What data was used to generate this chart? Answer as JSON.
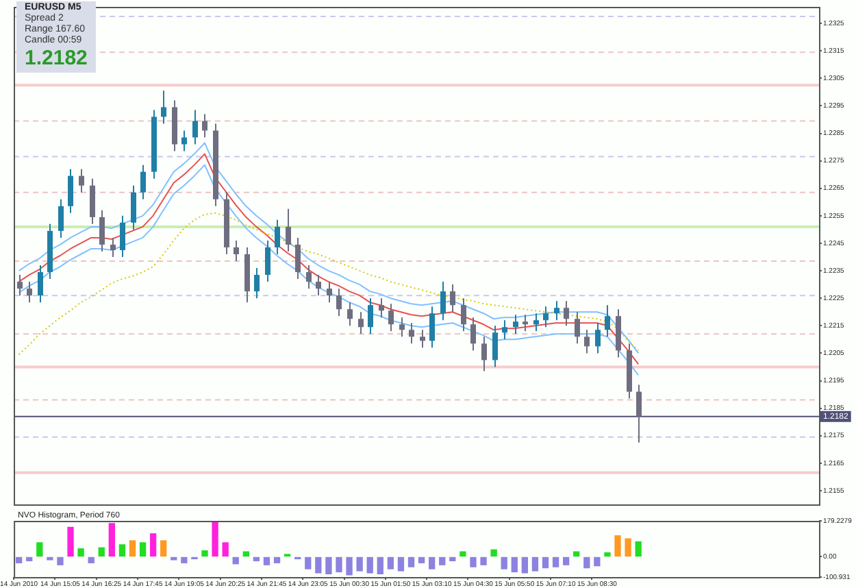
{
  "chart_data": [
    {
      "type": "candlestick",
      "annotations": [
        "EURUSD   M5",
        "Spread  2",
        "Range  167.60",
        "Candle  00:59",
        "1.2182"
      ],
      "categories": [
        null,
        null,
        null,
        null,
        null,
        null,
        null,
        null,
        null,
        null,
        null,
        null,
        null,
        null,
        null,
        null,
        null,
        null,
        null,
        null,
        null,
        null,
        null,
        null,
        null,
        null,
        null,
        null,
        null,
        null,
        null,
        null,
        null,
        null,
        null,
        null,
        null,
        null,
        null,
        null,
        null,
        null,
        null,
        null,
        null,
        null,
        null,
        null,
        null,
        null,
        null,
        null,
        null,
        null,
        null,
        null,
        null,
        null,
        null,
        null,
        null,
        null,
        null,
        null,
        null,
        null,
        null,
        null,
        null,
        null,
        null,
        null,
        null,
        null,
        null,
        null,
        null,
        null
      ],
      "ohlc": [
        [
          1.2231,
          1.22335,
          1.2226,
          1.22285
        ],
        [
          1.22285,
          1.2231,
          1.22235,
          1.2226
        ],
        [
          1.2226,
          1.2237,
          1.22235,
          1.22345
        ],
        [
          1.22345,
          1.2252,
          1.2232,
          1.22495
        ],
        [
          1.22495,
          1.2261,
          1.2247,
          1.22585
        ],
        [
          1.22585,
          1.2272,
          1.2256,
          1.22695
        ],
        [
          1.22695,
          1.2272,
          1.22635,
          1.2266
        ],
        [
          1.2266,
          1.22685,
          1.2252,
          1.22545
        ],
        [
          1.22545,
          1.2257,
          1.2242,
          1.22445
        ],
        [
          1.22445,
          1.2247,
          1.224,
          1.22425
        ],
        [
          1.22425,
          1.2255,
          1.224,
          1.22525
        ],
        [
          1.22525,
          1.2266,
          1.225,
          1.22635
        ],
        [
          1.22635,
          1.22735,
          1.2261,
          1.2271
        ],
        [
          1.2271,
          1.22935,
          1.22685,
          1.2291
        ],
        [
          1.2291,
          1.23005,
          1.22885,
          1.22945
        ],
        [
          1.22945,
          1.2297,
          1.22785,
          1.2281
        ],
        [
          1.2281,
          1.2286,
          1.22785,
          1.22835
        ],
        [
          1.22835,
          1.22935,
          1.2281,
          1.22895
        ],
        [
          1.22895,
          1.2292,
          1.22835,
          1.2286
        ],
        [
          1.2286,
          1.22885,
          1.22585,
          1.2261
        ],
        [
          1.2261,
          1.22635,
          1.2241,
          1.22435
        ],
        [
          1.22435,
          1.2246,
          1.22385,
          1.2241
        ],
        [
          1.2241,
          1.22435,
          1.22235,
          1.22275
        ],
        [
          1.22275,
          1.2236,
          1.2225,
          1.22335
        ],
        [
          1.22335,
          1.2246,
          1.2231,
          1.22435
        ],
        [
          1.22435,
          1.22535,
          1.2241,
          1.2251
        ],
        [
          1.2251,
          1.22575,
          1.2242,
          1.22445
        ],
        [
          1.22445,
          1.2247,
          1.2232,
          1.22345
        ],
        [
          1.22345,
          1.2237,
          1.22285,
          1.2231
        ],
        [
          1.2231,
          1.22335,
          1.2226,
          1.22285
        ],
        [
          1.22285,
          1.2231,
          1.22235,
          1.2226
        ],
        [
          1.2226,
          1.22285,
          1.22185,
          1.2221
        ],
        [
          1.2221,
          1.22235,
          1.2215,
          1.22175
        ],
        [
          1.22175,
          1.222,
          1.2212,
          1.22145
        ],
        [
          1.22145,
          1.2225,
          1.2212,
          1.22225
        ],
        [
          1.22225,
          1.2225,
          1.2218,
          1.22205
        ],
        [
          1.22205,
          1.2223,
          1.2213,
          1.22155
        ],
        [
          1.22155,
          1.2218,
          1.2211,
          1.22135
        ],
        [
          1.22135,
          1.2216,
          1.22085,
          1.2211
        ],
        [
          1.2211,
          1.22135,
          1.2207,
          1.22095
        ],
        [
          1.22095,
          1.2222,
          1.2207,
          1.22195
        ],
        [
          1.22195,
          1.2231,
          1.2217,
          1.22275
        ],
        [
          1.22275,
          1.223,
          1.222,
          1.22225
        ],
        [
          1.22225,
          1.2225,
          1.2213,
          1.22155
        ],
        [
          1.22155,
          1.2218,
          1.2206,
          1.22085
        ],
        [
          1.22085,
          1.2211,
          1.21985,
          1.22025
        ],
        [
          1.22025,
          1.2215,
          1.22,
          1.22125
        ],
        [
          1.22125,
          1.2217,
          1.221,
          1.22145
        ],
        [
          1.22145,
          1.2219,
          1.2212,
          1.22165
        ],
        [
          1.22165,
          1.2219,
          1.2213,
          1.22155
        ],
        [
          1.22155,
          1.22195,
          1.2213,
          1.2217
        ],
        [
          1.2217,
          1.2222,
          1.22145,
          1.22195
        ],
        [
          1.22195,
          1.2224,
          1.2217,
          1.22215
        ],
        [
          1.22215,
          1.2224,
          1.2215,
          1.22175
        ],
        [
          1.22175,
          1.222,
          1.22085,
          1.2211
        ],
        [
          1.2211,
          1.22135,
          1.2205,
          1.22075
        ],
        [
          1.22075,
          1.2216,
          1.2205,
          1.22135
        ],
        [
          1.22135,
          1.22225,
          1.2211,
          1.22185
        ],
        [
          1.22185,
          1.2221,
          1.22035,
          1.2206
        ],
        [
          1.2206,
          1.22085,
          1.21885,
          1.2191
        ],
        [
          1.2191,
          1.21935,
          1.21725,
          1.2182
        ],
        null,
        null,
        null,
        null,
        null,
        null,
        null,
        null,
        null,
        null,
        null,
        null,
        null,
        null,
        null,
        null,
        null
      ],
      "colors": [
        "#6e6e80",
        "#6e6e80",
        "#1f7fa6",
        "#1f7fa6",
        "#1f7fa6",
        "#1f7fa6",
        "#6e6e80",
        "#6e6e80",
        "#6e6e80",
        "#6e6e80",
        "#1f7fa6",
        "#1f7fa6",
        "#1f7fa6",
        "#1f7fa6",
        "#1f7fa6",
        "#6e6e80",
        "#1f7fa6",
        "#1f7fa6",
        "#6e6e80",
        "#6e6e80",
        "#6e6e80",
        "#6e6e80",
        "#6e6e80",
        "#1f7fa6",
        "#1f7fa6",
        "#1f7fa6",
        "#6e6e80",
        "#6e6e80",
        "#6e6e80",
        "#6e6e80",
        "#6e6e80",
        "#6e6e80",
        "#6e6e80",
        "#6e6e80",
        "#1f7fa6",
        "#6e6e80",
        "#6e6e80",
        "#6e6e80",
        "#6e6e80",
        "#6e6e80",
        "#1f7fa6",
        "#1f7fa6",
        "#6e6e80",
        "#6e6e80",
        "#6e6e80",
        "#6e6e80",
        "#1f7fa6",
        "#1f7fa6",
        "#1f7fa6",
        "#6e6e80",
        "#1f7fa6",
        "#1f7fa6",
        "#1f7fa6",
        "#6e6e80",
        "#6e6e80",
        "#6e6e80",
        "#1f7fa6",
        "#1f7fa6",
        "#6e6e80",
        "#6e6e80",
        "#6e6e80",
        "#6e6e80",
        "#6e6e80",
        "#6e6e80",
        "#6e6e80",
        "#6e6e80",
        "#6e6e80",
        "#6e6e80",
        "#6e6e80",
        "#6e6e80",
        "#6e6e80",
        "#6e6e80",
        "#6e6e80",
        "#6e6e80",
        "#6e6e80",
        "#6e6e80",
        "#6e6e80",
        "#6e6e80"
      ],
      "series": [
        {
          "type": "line",
          "color": "#d6c800",
          "line_style": "dotted",
          "values": [
            1.22045,
            1.2208,
            1.2212,
            1.2215,
            1.2218,
            1.22205,
            1.22235,
            1.22255,
            1.2228,
            1.22305,
            1.2232,
            1.2233,
            1.22345,
            1.22365,
            1.2241,
            1.2246,
            1.22505,
            1.22535,
            1.22555,
            1.2256,
            1.2255,
            1.22535,
            1.22515,
            1.225,
            1.22485,
            1.2247,
            1.22455,
            1.22435,
            1.2242,
            1.2241,
            1.22395,
            1.2238,
            1.22365,
            1.2235,
            1.22335,
            1.22325,
            1.2231,
            1.223,
            1.2229,
            1.2228,
            1.2227,
            1.2226,
            1.22255,
            1.22245,
            1.2224,
            1.2223,
            1.22225,
            1.2222,
            1.22215,
            1.2221,
            1.22205,
            1.222,
            1.22195,
            1.2219,
            1.22185,
            1.2218,
            1.22175,
            1.22165,
            1.2214,
            1.22095,
            1.2206,
            null,
            null,
            null,
            null,
            null,
            null,
            null,
            null,
            null,
            null,
            null,
            null,
            null,
            null,
            null,
            null,
            null
          ]
        },
        {
          "type": "line",
          "color": "#e85050",
          "values": [
            1.2231,
            1.22335,
            1.22355,
            1.22385,
            1.22405,
            1.2243,
            1.2245,
            1.2247,
            1.2247,
            1.22465,
            1.2248,
            1.22495,
            1.2251,
            1.2255,
            1.2261,
            1.2267,
            1.227,
            1.22735,
            1.22775,
            1.2269,
            1.2264,
            1.2259,
            1.22545,
            1.2251,
            1.2248,
            1.22445,
            1.22415,
            1.2239,
            1.22355,
            1.2233,
            1.2231,
            1.22295,
            1.22275,
            1.2226,
            1.22235,
            1.22225,
            1.2221,
            1.222,
            1.2219,
            1.22185,
            1.2219,
            1.22195,
            1.222,
            1.22185,
            1.2217,
            1.22155,
            1.22135,
            1.2214,
            1.2214,
            1.22145,
            1.2215,
            1.22155,
            1.2216,
            1.2216,
            1.2216,
            1.2216,
            1.2216,
            1.2215,
            1.22105,
            1.2206,
            1.2201,
            null,
            null,
            null,
            null,
            null,
            null,
            null,
            null,
            null,
            null,
            null,
            null,
            null,
            null,
            null,
            null,
            null
          ]
        },
        {
          "type": "line",
          "color": "#80c0ff",
          "values": [
            1.2235,
            1.22375,
            1.22395,
            1.22425,
            1.22445,
            1.2247,
            1.2249,
            1.2251,
            1.2251,
            1.22505,
            1.2252,
            1.22535,
            1.2255,
            1.2259,
            1.2265,
            1.2271,
            1.2274,
            1.22775,
            1.22815,
            1.2273,
            1.2268,
            1.2263,
            1.22585,
            1.2255,
            1.2252,
            1.22485,
            1.22455,
            1.2243,
            1.22395,
            1.2237,
            1.2235,
            1.22335,
            1.22315,
            1.223,
            1.22275,
            1.22265,
            1.2225,
            1.2224,
            1.2223,
            1.22225,
            1.2223,
            1.22235,
            1.2224,
            1.22225,
            1.2221,
            1.22195,
            1.22175,
            1.2218,
            1.2218,
            1.22185,
            1.2219,
            1.22195,
            1.222,
            1.222,
            1.222,
            1.222,
            1.222,
            1.2219,
            1.22145,
            1.221,
            1.2205,
            null,
            null,
            null,
            null,
            null,
            null,
            null,
            null,
            null,
            null,
            null,
            null,
            null,
            null,
            null,
            null,
            null
          ]
        },
        {
          "type": "line",
          "color": "#80c0ff",
          "values": [
            1.2227,
            1.22295,
            1.22315,
            1.22345,
            1.22365,
            1.2239,
            1.2241,
            1.2243,
            1.2243,
            1.22425,
            1.2244,
            1.22455,
            1.2247,
            1.2251,
            1.2257,
            1.2263,
            1.2266,
            1.22695,
            1.22735,
            1.2265,
            1.226,
            1.2255,
            1.22505,
            1.2247,
            1.2244,
            1.22405,
            1.22375,
            1.2235,
            1.22315,
            1.2229,
            1.2227,
            1.22255,
            1.22235,
            1.2222,
            1.22195,
            1.22185,
            1.2217,
            1.2216,
            1.2215,
            1.22145,
            1.2215,
            1.22155,
            1.2216,
            1.22145,
            1.2213,
            1.22115,
            1.22095,
            1.221,
            1.221,
            1.22105,
            1.2211,
            1.22115,
            1.2212,
            1.2212,
            1.2212,
            1.2212,
            1.2212,
            1.2211,
            1.22065,
            1.2202,
            1.2197,
            null,
            null,
            null,
            null,
            null,
            null,
            null,
            null,
            null,
            null,
            null,
            null,
            null,
            null,
            null,
            null,
            null
          ]
        }
      ],
      "ylim": [
        1.215,
        1.2331
      ],
      "yticks": [
        1.2155,
        1.2165,
        1.2175,
        1.2185,
        1.2195,
        1.2205,
        1.2215,
        1.2225,
        1.2235,
        1.2245,
        1.2255,
        1.2265,
        1.2275,
        1.2285,
        1.2295,
        1.2305,
        1.2315,
        1.2325
      ],
      "tick_labels": "y",
      "ref_lines": [
        {
          "axis": "y",
          "value": 1.23275,
          "color": "#c8c8f0",
          "line_style": "dashed"
        },
        {
          "axis": "y",
          "value": 1.23145,
          "color": "#ecc4c4",
          "line_style": "dashed"
        },
        {
          "axis": "y",
          "value": 1.23025,
          "color": "#f6cccc",
          "line_style": "solid"
        },
        {
          "axis": "y",
          "value": 1.22895,
          "color": "#ecc4c4",
          "line_style": "dashed"
        },
        {
          "axis": "y",
          "value": 1.22765,
          "color": "#c8c8f0",
          "line_style": "dashed"
        },
        {
          "axis": "y",
          "value": 1.22635,
          "color": "#ecc4c4",
          "line_style": "dashed"
        },
        {
          "axis": "y",
          "value": 1.2251,
          "color": "#c8f0b0",
          "line_style": "solid"
        },
        {
          "axis": "y",
          "value": 1.22385,
          "color": "#ecc4c4",
          "line_style": "dashed"
        },
        {
          "axis": "y",
          "value": 1.2226,
          "color": "#c8c8f0",
          "line_style": "dashed"
        },
        {
          "axis": "y",
          "value": 1.2212,
          "color": "#ecc4c4",
          "line_style": "dashed"
        },
        {
          "axis": "y",
          "value": 1.22,
          "color": "#f6cccc",
          "line_style": "solid"
        },
        {
          "axis": "y",
          "value": 1.2188,
          "color": "#ecc4c4",
          "line_style": "dashed"
        },
        {
          "axis": "y",
          "value": 1.21745,
          "color": "#c8c8f0",
          "line_style": "dashed"
        },
        {
          "axis": "y",
          "value": 1.21615,
          "color": "#f6cccc",
          "line_style": "solid"
        },
        {
          "axis": "y",
          "value": 1.2182,
          "label": "1.2182",
          "color": "#505078",
          "line_style": "solid"
        }
      ]
    },
    {
      "type": "bar",
      "title": "NVO Histogram, Period 760",
      "categories": [
        "14 Jun 2010",
        null,
        null,
        null,
        "14 Jun 15:05",
        null,
        null,
        null,
        "14 Jun 16:25",
        null,
        null,
        null,
        "14 Jun 17:45",
        null,
        null,
        null,
        "14 Jun 19:05",
        null,
        null,
        null,
        "14 Jun 20:25",
        null,
        null,
        null,
        "14 Jun 21:45",
        null,
        null,
        null,
        "14 Jun 23:05",
        null,
        null,
        null,
        "15 Jun 00:30",
        null,
        null,
        null,
        "15 Jun 01:50",
        null,
        null,
        null,
        "15 Jun 03:10",
        null,
        null,
        null,
        "15 Jun 04:30",
        null,
        null,
        null,
        "15 Jun 05:50",
        null,
        null,
        null,
        "15 Jun 07:10",
        null,
        null,
        null,
        "15 Jun 08:30",
        null,
        null,
        null,
        null,
        null,
        null,
        null,
        null,
        null,
        null,
        null,
        null,
        null,
        null,
        null,
        null,
        null,
        null,
        null,
        null,
        null
      ],
      "values": [
        -30,
        -20,
        70,
        -15,
        -40,
        147,
        40,
        -30,
        45,
        166,
        60,
        80,
        70,
        115,
        80,
        -15,
        -30,
        -10,
        30,
        175,
        70,
        -35,
        25,
        -20,
        -40,
        -30,
        12,
        -10,
        -60,
        -80,
        -85,
        -75,
        -90,
        -70,
        -80,
        -85,
        -60,
        -70,
        -50,
        -30,
        -60,
        -40,
        -20,
        25,
        -50,
        -40,
        35,
        -60,
        -75,
        -80,
        -70,
        -55,
        -50,
        -40,
        25,
        -55,
        -45,
        20,
        105,
        90,
        75,
        null,
        null,
        null,
        null,
        null,
        null,
        null,
        null,
        null,
        null,
        null,
        null,
        null,
        null,
        null,
        null,
        null
      ],
      "colors": [
        "#8c82e0",
        "#8c82e0",
        "#22dd22",
        "#8c82e0",
        "#8c82e0",
        "#ff22dd",
        "#22dd22",
        "#8c82e0",
        "#22dd22",
        "#ff22dd",
        "#22dd22",
        "#ff9922",
        "#22dd22",
        "#ff22dd",
        "#ff9922",
        "#8c82e0",
        "#8c82e0",
        "#8c82e0",
        "#22dd22",
        "#ff22dd",
        "#ff22dd",
        "#8c82e0",
        "#22dd22",
        "#8c82e0",
        "#8c82e0",
        "#8c82e0",
        "#22dd22",
        "#8c82e0",
        "#8c82e0",
        "#8c82e0",
        "#8c82e0",
        "#8c82e0",
        "#8c82e0",
        "#8c82e0",
        "#8c82e0",
        "#8c82e0",
        "#8c82e0",
        "#8c82e0",
        "#8c82e0",
        "#8c82e0",
        "#8c82e0",
        "#8c82e0",
        "#8c82e0",
        "#22dd22",
        "#8c82e0",
        "#8c82e0",
        "#22dd22",
        "#8c82e0",
        "#8c82e0",
        "#8c82e0",
        "#8c82e0",
        "#8c82e0",
        "#8c82e0",
        "#8c82e0",
        "#22dd22",
        "#8c82e0",
        "#8c82e0",
        "#22dd22",
        "#ff9922",
        "#ff9922",
        "#22dd22",
        "#8c82e0",
        "#8c82e0",
        "#8c82e0",
        "#8c82e0",
        "#8c82e0",
        "#8c82e0",
        "#8c82e0",
        "#8c82e0",
        "#8c82e0",
        "#8c82e0",
        "#8c82e0",
        "#8c82e0",
        "#8c82e0",
        "#8c82e0",
        "#8c82e0",
        "#8c82e0",
        "#8c82e0"
      ],
      "ylim": [
        -100.931,
        179.2279
      ],
      "yticks": [
        {
          "value": 179.2279,
          "label": "179.2279"
        },
        {
          "value": 0,
          "label": "0.00"
        },
        {
          "value": -100.931,
          "label": "-100.931"
        }
      ]
    }
  ]
}
